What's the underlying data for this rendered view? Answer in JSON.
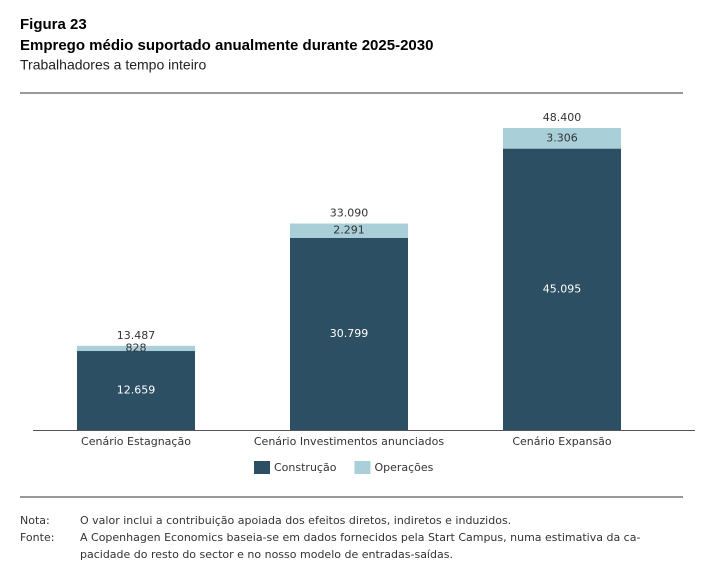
{
  "chart_data": {
    "type": "stacked-bar",
    "figure_label": "Figura 23",
    "title": "Emprego médio suportado anualmente durante 2025-2030",
    "subtitle": "Trabalhadores a tempo inteiro",
    "categories": [
      "Cenário Estagnação",
      "Cenário Investimentos anunciados",
      "Cenário Expansão"
    ],
    "series": [
      {
        "name": "Construção",
        "color": "#2d4f63",
        "label_color": "#ffffff",
        "values": [
          12659,
          30799,
          45095
        ],
        "value_labels": [
          "12.659",
          "30.799",
          "45.095"
        ]
      },
      {
        "name": "Operações",
        "color": "#a9cfd9",
        "label_color": "#333333",
        "values": [
          828,
          2291,
          3306
        ],
        "value_labels": [
          "828",
          "2.291",
          "3.306"
        ]
      }
    ],
    "totals": {
      "values": [
        13487,
        33090,
        48400
      ],
      "value_labels": [
        "13.487",
        "33.090",
        "48.400"
      ]
    },
    "notes": [
      {
        "label": "Nota:",
        "lines": [
          "O valor inclui a contribuição apoiada dos efeitos diretos, indiretos e induzidos."
        ]
      },
      {
        "label": "Fonte:",
        "lines": [
          "A Copenhagen Economics baseia-se em dados fornecidos pela Start Campus, numa estimativa da ca-",
          "pacidade do resto do sector e no nosso modelo de entradas-saídas."
        ]
      }
    ]
  }
}
